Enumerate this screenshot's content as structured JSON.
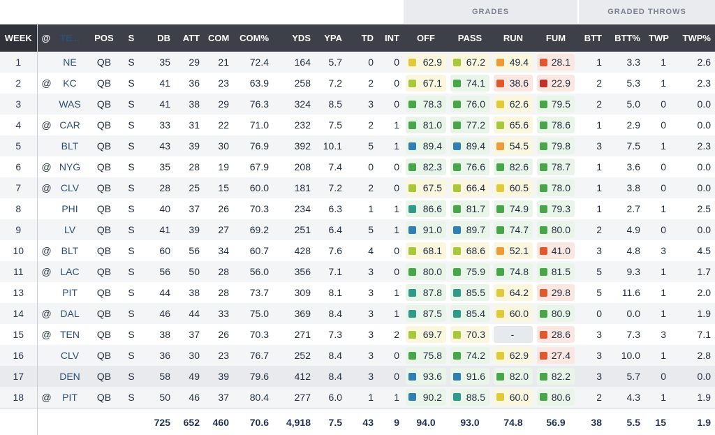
{
  "group_headers": {
    "grades": "GRADES",
    "graded_throws": "GRADED THROWS"
  },
  "columns": [
    "WEEK",
    "@",
    "TE...",
    "POS",
    "S",
    "DB",
    "ATT",
    "COM",
    "COM%",
    "YDS",
    "YPA",
    "TD",
    "INT",
    "OFF",
    "PASS",
    "RUN",
    "FUM",
    "BTT",
    "BTT%",
    "TWP",
    "TWP%"
  ],
  "colors": {
    "blue": "#2f7fb5",
    "teal": "#2f9a8a",
    "green": "#48a54a",
    "lime": "#a6c83a",
    "yellow": "#e2c93a",
    "orange": "#ee9a3a",
    "red_orange": "#e0582e",
    "red": "#c4302b",
    "chip_bg_good": "#eaf5ea",
    "chip_bg_mid": "#fbf7df",
    "chip_bg_bad": "#fbe7e2"
  },
  "rows": [
    {
      "week": "1",
      "at": "",
      "team": "NE",
      "pos": "QB",
      "s": "S",
      "db": "35",
      "att": "29",
      "com": "21",
      "comp": "72.4",
      "yds": "164",
      "ypa": "5.7",
      "td": "0",
      "int": "0",
      "off": "62.9",
      "pass": "67.2",
      "run": "49.4",
      "fum": "28.1",
      "btt": "1",
      "bttp": "3.3",
      "twp": "1",
      "twpp": "2.6",
      "c": [
        "yellow",
        "lime",
        "orange",
        "red_orange"
      ]
    },
    {
      "week": "2",
      "at": "@",
      "team": "KC",
      "pos": "QB",
      "s": "S",
      "db": "41",
      "att": "36",
      "com": "23",
      "comp": "63.9",
      "yds": "258",
      "ypa": "7.2",
      "td": "2",
      "int": "0",
      "off": "67.1",
      "pass": "74.1",
      "run": "38.6",
      "fum": "22.9",
      "btt": "2",
      "bttp": "5.3",
      "twp": "1",
      "twpp": "2.3",
      "c": [
        "lime",
        "green",
        "red_orange",
        "red"
      ]
    },
    {
      "week": "3",
      "at": "",
      "team": "WAS",
      "pos": "QB",
      "s": "S",
      "db": "41",
      "att": "38",
      "com": "29",
      "comp": "76.3",
      "yds": "324",
      "ypa": "8.5",
      "td": "3",
      "int": "0",
      "off": "78.3",
      "pass": "76.0",
      "run": "62.6",
      "fum": "79.5",
      "btt": "2",
      "bttp": "5.0",
      "twp": "0",
      "twpp": "0.0",
      "c": [
        "green",
        "green",
        "yellow",
        "green"
      ]
    },
    {
      "week": "4",
      "at": "@",
      "team": "CAR",
      "pos": "QB",
      "s": "S",
      "db": "33",
      "att": "31",
      "com": "22",
      "comp": "71.0",
      "yds": "232",
      "ypa": "7.5",
      "td": "2",
      "int": "1",
      "off": "81.0",
      "pass": "77.2",
      "run": "65.6",
      "fum": "78.6",
      "btt": "1",
      "bttp": "2.9",
      "twp": "0",
      "twpp": "0.0",
      "c": [
        "green",
        "green",
        "lime",
        "green"
      ]
    },
    {
      "week": "5",
      "at": "",
      "team": "BLT",
      "pos": "QB",
      "s": "S",
      "db": "43",
      "att": "39",
      "com": "30",
      "comp": "76.9",
      "yds": "392",
      "ypa": "10.1",
      "td": "5",
      "int": "1",
      "off": "89.4",
      "pass": "89.4",
      "run": "54.5",
      "fum": "79.8",
      "btt": "3",
      "bttp": "7.5",
      "twp": "1",
      "twpp": "2.3",
      "c": [
        "blue",
        "blue",
        "orange",
        "green"
      ]
    },
    {
      "week": "6",
      "at": "@",
      "team": "NYG",
      "pos": "QB",
      "s": "S",
      "db": "35",
      "att": "28",
      "com": "19",
      "comp": "67.9",
      "yds": "208",
      "ypa": "7.4",
      "td": "0",
      "int": "0",
      "off": "82.3",
      "pass": "76.6",
      "run": "82.6",
      "fum": "78.7",
      "btt": "1",
      "bttp": "3.6",
      "twp": "0",
      "twpp": "0.0",
      "c": [
        "green",
        "green",
        "green",
        "green"
      ]
    },
    {
      "week": "7",
      "at": "@",
      "team": "CLV",
      "pos": "QB",
      "s": "S",
      "db": "28",
      "att": "25",
      "com": "15",
      "comp": "60.0",
      "yds": "181",
      "ypa": "7.2",
      "td": "2",
      "int": "0",
      "off": "67.5",
      "pass": "66.4",
      "run": "60.5",
      "fum": "78.0",
      "btt": "1",
      "bttp": "3.8",
      "twp": "0",
      "twpp": "0.0",
      "c": [
        "lime",
        "lime",
        "yellow",
        "green"
      ]
    },
    {
      "week": "8",
      "at": "",
      "team": "PHI",
      "pos": "QB",
      "s": "S",
      "db": "40",
      "att": "37",
      "com": "26",
      "comp": "70.3",
      "yds": "234",
      "ypa": "6.3",
      "td": "1",
      "int": "1",
      "off": "86.6",
      "pass": "81.7",
      "run": "74.9",
      "fum": "79.3",
      "btt": "1",
      "bttp": "2.7",
      "twp": "1",
      "twpp": "2.5",
      "c": [
        "teal",
        "green",
        "green",
        "green"
      ]
    },
    {
      "week": "9",
      "at": "",
      "team": "LV",
      "pos": "QB",
      "s": "S",
      "db": "41",
      "att": "39",
      "com": "27",
      "comp": "69.2",
      "yds": "251",
      "ypa": "6.4",
      "td": "5",
      "int": "1",
      "off": "91.0",
      "pass": "89.7",
      "run": "74.7",
      "fum": "80.0",
      "btt": "2",
      "bttp": "4.9",
      "twp": "0",
      "twpp": "0.0",
      "c": [
        "blue",
        "blue",
        "green",
        "green"
      ]
    },
    {
      "week": "10",
      "at": "@",
      "team": "BLT",
      "pos": "QB",
      "s": "S",
      "db": "60",
      "att": "56",
      "com": "34",
      "comp": "60.7",
      "yds": "428",
      "ypa": "7.6",
      "td": "4",
      "int": "0",
      "off": "68.1",
      "pass": "68.6",
      "run": "52.1",
      "fum": "41.0",
      "btt": "3",
      "bttp": "4.8",
      "twp": "3",
      "twpp": "4.5",
      "c": [
        "lime",
        "lime",
        "orange",
        "red_orange"
      ]
    },
    {
      "week": "11",
      "at": "@",
      "team": "LAC",
      "pos": "QB",
      "s": "S",
      "db": "56",
      "att": "50",
      "com": "28",
      "comp": "56.0",
      "yds": "356",
      "ypa": "7.1",
      "td": "3",
      "int": "0",
      "off": "80.0",
      "pass": "75.9",
      "run": "74.8",
      "fum": "81.5",
      "btt": "5",
      "bttp": "9.3",
      "twp": "1",
      "twpp": "1.7",
      "c": [
        "green",
        "green",
        "green",
        "green"
      ]
    },
    {
      "week": "13",
      "at": "",
      "team": "PIT",
      "pos": "QB",
      "s": "S",
      "db": "44",
      "att": "38",
      "com": "28",
      "comp": "73.7",
      "yds": "309",
      "ypa": "8.1",
      "td": "3",
      "int": "1",
      "off": "87.8",
      "pass": "85.5",
      "run": "64.2",
      "fum": "29.8",
      "btt": "5",
      "bttp": "11.6",
      "twp": "1",
      "twpp": "2.0",
      "c": [
        "teal",
        "teal",
        "yellow",
        "red_orange"
      ]
    },
    {
      "week": "14",
      "at": "@",
      "team": "DAL",
      "pos": "QB",
      "s": "S",
      "db": "46",
      "att": "44",
      "com": "33",
      "comp": "75.0",
      "yds": "369",
      "ypa": "8.4",
      "td": "3",
      "int": "1",
      "off": "87.5",
      "pass": "85.4",
      "run": "60.0",
      "fum": "80.9",
      "btt": "0",
      "bttp": "0.0",
      "twp": "1",
      "twpp": "1.9",
      "c": [
        "teal",
        "teal",
        "yellow",
        "green"
      ]
    },
    {
      "week": "15",
      "at": "@",
      "team": "TEN",
      "pos": "QB",
      "s": "S",
      "db": "38",
      "att": "37",
      "com": "26",
      "comp": "70.3",
      "yds": "271",
      "ypa": "7.3",
      "td": "3",
      "int": "2",
      "off": "69.7",
      "pass": "70.3",
      "run": "-",
      "fum": "28.6",
      "btt": "3",
      "bttp": "7.3",
      "twp": "3",
      "twpp": "7.1",
      "c": [
        "lime",
        "lime",
        "none",
        "red_orange"
      ]
    },
    {
      "week": "16",
      "at": "",
      "team": "CLV",
      "pos": "QB",
      "s": "S",
      "db": "36",
      "att": "30",
      "com": "23",
      "comp": "76.7",
      "yds": "252",
      "ypa": "8.4",
      "td": "3",
      "int": "0",
      "off": "75.8",
      "pass": "74.2",
      "run": "62.9",
      "fum": "27.4",
      "btt": "3",
      "bttp": "10.0",
      "twp": "1",
      "twpp": "2.8",
      "c": [
        "green",
        "green",
        "yellow",
        "red_orange"
      ]
    },
    {
      "week": "17",
      "at": "",
      "team": "DEN",
      "pos": "QB",
      "s": "S",
      "db": "58",
      "att": "49",
      "com": "39",
      "comp": "79.6",
      "yds": "412",
      "ypa": "8.4",
      "td": "3",
      "int": "0",
      "off": "93.6",
      "pass": "91.6",
      "run": "82.0",
      "fum": "82.2",
      "btt": "3",
      "bttp": "5.7",
      "twp": "0",
      "twpp": "0.0",
      "c": [
        "blue",
        "blue",
        "green",
        "green"
      ]
    },
    {
      "week": "18",
      "at": "@",
      "team": "PIT",
      "pos": "QB",
      "s": "S",
      "db": "50",
      "att": "46",
      "com": "37",
      "comp": "80.4",
      "yds": "277",
      "ypa": "6.0",
      "td": "1",
      "int": "1",
      "off": "90.2",
      "pass": "88.5",
      "run": "60.0",
      "fum": "80.6",
      "btt": "2",
      "bttp": "4.3",
      "twp": "1",
      "twpp": "1.9",
      "c": [
        "blue",
        "teal",
        "yellow",
        "green"
      ]
    }
  ],
  "totals": {
    "db": "725",
    "att": "652",
    "com": "460",
    "comp": "70.6",
    "yds": "4,918",
    "ypa": "7.5",
    "td": "43",
    "int": "9",
    "off": "94.0",
    "pass": "93.0",
    "run": "74.8",
    "fum": "56.9",
    "btt": "38",
    "bttp": "5.5",
    "twp": "15",
    "twpp": "1.9"
  }
}
